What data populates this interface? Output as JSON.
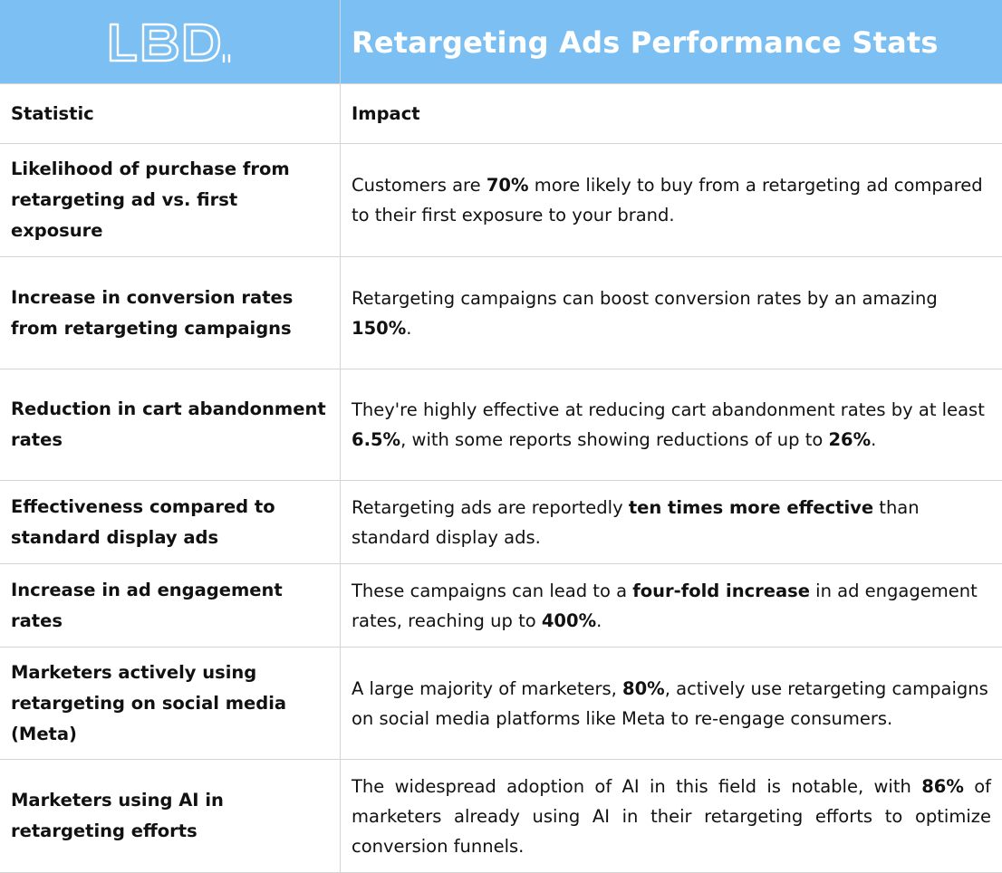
{
  "header": {
    "logo_text": "LBD",
    "title": "Retargeting Ads Performance Stats",
    "bg_color": "#7cc0f3"
  },
  "table": {
    "columns": [
      "Statistic",
      "Impact"
    ],
    "rows": [
      {
        "statistic": "Likelihood of purchase from retargeting ad vs. first exposure",
        "impact": [
          {
            "t": "Customers are "
          },
          {
            "t": "70%",
            "b": true
          },
          {
            "t": " more likely to buy from a retargeting ad compared to their first exposure to your brand."
          }
        ]
      },
      {
        "statistic": "Increase in conversion rates from retargeting campaigns",
        "impact": [
          {
            "t": "Retargeting campaigns can boost conversion rates by an amazing "
          },
          {
            "t": "150%",
            "b": true
          },
          {
            "t": "."
          }
        ]
      },
      {
        "statistic": "Reduction in cart abandonment rates",
        "impact": [
          {
            "t": "They're highly effective at reducing cart abandonment rates by at least "
          },
          {
            "t": "6.5%",
            "b": true
          },
          {
            "t": ", with some reports showing reductions of up to "
          },
          {
            "t": "26%",
            "b": true
          },
          {
            "t": "."
          }
        ]
      },
      {
        "statistic": "Effectiveness compared to standard display ads",
        "impact": [
          {
            "t": "Retargeting ads are reportedly "
          },
          {
            "t": "ten times more effective",
            "b": true
          },
          {
            "t": " than standard display ads."
          }
        ]
      },
      {
        "statistic": "Increase in ad engagement rates",
        "impact": [
          {
            "t": "These campaigns can lead to a "
          },
          {
            "t": "four-fold increase",
            "b": true
          },
          {
            "t": " in ad engagement rates, reaching up to "
          },
          {
            "t": "400%",
            "b": true
          },
          {
            "t": "."
          }
        ]
      },
      {
        "statistic": "Marketers actively using retargeting on social media (Meta)",
        "impact": [
          {
            "t": "A large majority of marketers, "
          },
          {
            "t": "80%",
            "b": true
          },
          {
            "t": ", actively use retargeting campaigns on social media platforms like Meta to re-engage consumers."
          }
        ]
      },
      {
        "statistic": "Marketers using AI in retargeting efforts",
        "impact": [
          {
            "t": "The widespread adoption of AI in this field is notable, with "
          },
          {
            "t": "86%",
            "b": true
          },
          {
            "t": " of marketers already using AI in their retargeting efforts to optimize conversion funnels."
          }
        ]
      }
    ]
  }
}
